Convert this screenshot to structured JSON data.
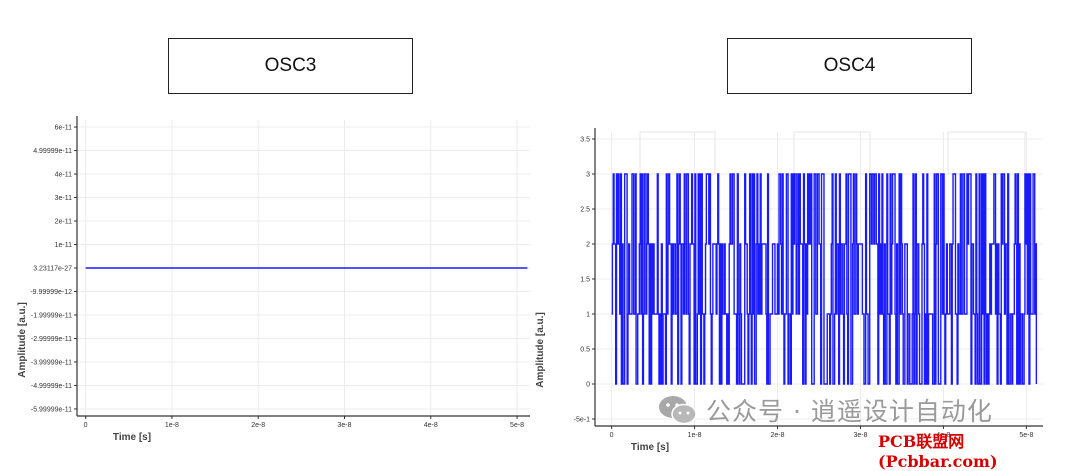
{
  "labels": {
    "osc3": "OSC3",
    "osc4": "OSC4"
  },
  "watermark": {
    "text": "公众号 · 逍遥设计自动化",
    "icon": "wechat-icon"
  },
  "footer": {
    "text": "PCB联盟网 (Pcbbar.com)"
  },
  "colors": {
    "series": "#1a1aff",
    "grid": "#ececec",
    "axis": "#333333",
    "footer": "#d40000"
  },
  "chart_data": [
    {
      "type": "line",
      "title": "",
      "xlabel": "Time [s]",
      "ylabel": "Amplitude [a.u.]",
      "x_ticks": [
        "0",
        "1e-8",
        "2e-8",
        "3e-8",
        "4e-8",
        "5e-8"
      ],
      "x_tick_values": [
        0,
        1e-08,
        2e-08,
        3e-08,
        4e-08,
        5e-08
      ],
      "y_ticks": [
        "6e-11",
        "4.99999e-11",
        "4e-11",
        "3e-11",
        "2e-11",
        "1e-11",
        "3.23117e-27",
        "-9.99999e-12",
        "-1.99999e-11",
        "-2.99999e-11",
        "-3.99999e-11",
        "-4.99999e-11",
        "-5.99999e-11"
      ],
      "y_tick_values": [
        6e-11,
        5e-11,
        4e-11,
        3e-11,
        2e-11,
        1e-11,
        0,
        -1e-11,
        -2e-11,
        -3e-11,
        -4e-11,
        -5e-11,
        -6e-11
      ],
      "xlim": [
        -1e-09,
        5.15e-08
      ],
      "ylim": [
        -6.3e-11,
        6.3e-11
      ],
      "grid": true,
      "series": [
        {
          "x": [
            0,
            5.12e-08
          ],
          "y": [
            3.23117e-27,
            3.23117e-27
          ]
        }
      ]
    },
    {
      "type": "line",
      "title": "",
      "xlabel": "Time [s]",
      "ylabel": "Amplitude [a.u.]",
      "x_ticks": [
        "0",
        "1e-8",
        "2e-8",
        "3e-8",
        "4e-8",
        "5e-8"
      ],
      "x_tick_values": [
        0,
        1e-08,
        2e-08,
        3e-08,
        4e-08,
        5e-08
      ],
      "y_ticks": [
        "3.5",
        "3",
        "2.5",
        "2",
        "1.5",
        "1",
        "0.5",
        "0",
        "-5e-1"
      ],
      "y_tick_values": [
        3.5,
        3,
        2.5,
        2,
        1.5,
        1,
        0.5,
        0,
        -0.5
      ],
      "xlim": [
        -2e-09,
        5.2e-08
      ],
      "ylim": [
        -0.6,
        3.6
      ],
      "grid": true,
      "levels": [
        0,
        1,
        2,
        3
      ],
      "x_range": [
        0,
        5.12e-08
      ],
      "note": "dense random multilevel signal switching among levels 0, 1, 2, 3"
    }
  ]
}
